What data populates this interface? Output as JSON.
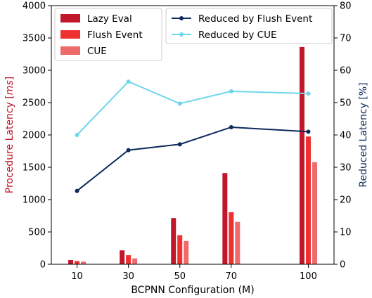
{
  "chart_data": {
    "type": "bar",
    "xlabel": "BCPNN Configuration (M)",
    "ylabel_left": "Procedure Latency [ms]",
    "ylabel_left_prefix": "Procedure Latency [",
    "ylabel_left_unit": "ms",
    "ylabel_left_suffix": "]",
    "ylabel_right": "Reduced Latency [%]",
    "ylim_left": [
      0,
      4000
    ],
    "ylim_right": [
      0,
      80
    ],
    "xlim": [
      0,
      110
    ],
    "x": [
      10,
      30,
      50,
      70,
      100
    ],
    "x_tick_labels": [
      "10",
      "30",
      "50",
      "70",
      "100"
    ],
    "left_ticks": [
      "0",
      "500",
      "1000",
      "1500",
      "2000",
      "2500",
      "3000",
      "3500",
      "4000"
    ],
    "right_ticks": [
      "0",
      "10",
      "20",
      "30",
      "40",
      "50",
      "60",
      "70",
      "80"
    ],
    "bar_series": [
      {
        "name": "Lazy Eval",
        "color": "#c0182a",
        "values": [
          65,
          215,
          715,
          1410,
          3360
        ]
      },
      {
        "name": "Flush Event",
        "color": "#ee3030",
        "values": [
          50,
          140,
          450,
          805,
          1975
        ]
      },
      {
        "name": "CUE",
        "color": "#ee6b6b",
        "values": [
          40,
          90,
          360,
          655,
          1580
        ]
      }
    ],
    "line_series": [
      {
        "name": "Reduced by Flush Event",
        "color": "#0c2a5a",
        "values": [
          22.7,
          35.3,
          37.1,
          42.4,
          41.0
        ]
      },
      {
        "name": "Reduced by CUE",
        "color": "#6fd6ec",
        "values": [
          40.0,
          56.5,
          49.7,
          53.5,
          52.8
        ]
      }
    ],
    "left_axis_color": "#c0182a",
    "right_axis_color": "#0c2a5a",
    "legend_bars_placement": "top-left",
    "legend_lines_placement": "top-right",
    "grid": false
  }
}
